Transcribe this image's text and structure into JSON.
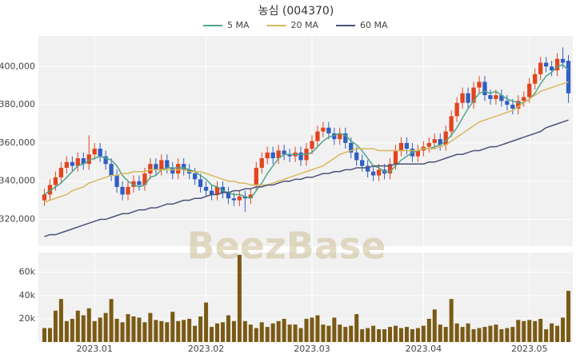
{
  "chart_data": [
    {
      "type": "candlestick",
      "title": "농심 (004370)",
      "watermark": "BeezBase",
      "categories": [
        null,
        null,
        null,
        null,
        null,
        null,
        null,
        null,
        null,
        "2023.01",
        null,
        null,
        null,
        null,
        null,
        null,
        null,
        null,
        null,
        null,
        null,
        null,
        null,
        null,
        null,
        null,
        null,
        null,
        null,
        "2023.02",
        null,
        null,
        null,
        null,
        null,
        null,
        null,
        null,
        null,
        null,
        null,
        null,
        null,
        null,
        null,
        null,
        null,
        null,
        "2023.03",
        null,
        null,
        null,
        null,
        null,
        null,
        null,
        null,
        null,
        null,
        null,
        null,
        null,
        null,
        null,
        null,
        null,
        null,
        null,
        "2023.04",
        null,
        null,
        null,
        null,
        null,
        null,
        null,
        null,
        null,
        null,
        null,
        null,
        null,
        null,
        null,
        null,
        null,
        null,
        "2023.05",
        null,
        null,
        null,
        null,
        null,
        null,
        null
      ],
      "open": [
        330000,
        333000,
        338000,
        342000,
        347000,
        350000,
        348000,
        352000,
        349000,
        354000,
        357000,
        353000,
        349000,
        343000,
        337000,
        333000,
        337000,
        340000,
        338000,
        344000,
        349000,
        346000,
        351000,
        347000,
        344000,
        349000,
        346000,
        344000,
        341000,
        337000,
        335000,
        333000,
        337000,
        334000,
        331000,
        330000,
        332000,
        331000,
        338000,
        347000,
        352000,
        355000,
        352000,
        356000,
        354000,
        353000,
        355000,
        351000,
        357000,
        361000,
        366000,
        368000,
        365000,
        362000,
        365000,
        360000,
        355000,
        351000,
        348000,
        345000,
        343000,
        346000,
        344000,
        349000,
        356000,
        360000,
        357000,
        353000,
        356000,
        358000,
        360000,
        362000,
        359000,
        366000,
        374000,
        381000,
        386000,
        381000,
        389000,
        392000,
        385000,
        383000,
        385000,
        382000,
        380000,
        378000,
        382000,
        384000,
        391000,
        396000,
        402000,
        400000,
        398000,
        404000,
        403000
      ],
      "high": [
        336000,
        341000,
        345000,
        350000,
        353000,
        353000,
        355000,
        355000,
        364000,
        360000,
        360000,
        356000,
        352000,
        346000,
        340000,
        340000,
        343000,
        343000,
        347000,
        352000,
        352000,
        354000,
        354000,
        350000,
        352000,
        352000,
        349000,
        347000,
        344000,
        340000,
        338000,
        340000,
        340000,
        337000,
        334000,
        335000,
        335000,
        336000,
        350000,
        355000,
        358000,
        358000,
        359000,
        359000,
        357000,
        358000,
        358000,
        360000,
        364000,
        369000,
        371000,
        371000,
        368000,
        368000,
        368000,
        363000,
        358000,
        354000,
        351000,
        348000,
        349000,
        349000,
        352000,
        359000,
        363000,
        363000,
        360000,
        359000,
        361000,
        363000,
        365000,
        365000,
        369000,
        377000,
        384000,
        389000,
        389000,
        392000,
        395000,
        395000,
        388000,
        388000,
        388000,
        385000,
        383000,
        385000,
        387000,
        394000,
        399000,
        405000,
        405000,
        403000,
        407000,
        410000,
        406000
      ],
      "low": [
        327000,
        330000,
        335000,
        339000,
        344000,
        345000,
        345000,
        346000,
        346000,
        351000,
        350000,
        346000,
        340000,
        334000,
        330000,
        330000,
        334000,
        335000,
        335000,
        341000,
        343000,
        343000,
        344000,
        341000,
        341000,
        343000,
        341000,
        338000,
        334000,
        332000,
        330000,
        330000,
        331000,
        328000,
        327000,
        327000,
        324000,
        328000,
        335000,
        344000,
        349000,
        349000,
        349000,
        351000,
        350000,
        350000,
        348000,
        348000,
        354000,
        358000,
        363000,
        362000,
        359000,
        359000,
        357000,
        352000,
        348000,
        345000,
        342000,
        340000,
        340000,
        341000,
        341000,
        346000,
        353000,
        354000,
        350000,
        350000,
        353000,
        355000,
        357000,
        356000,
        356000,
        363000,
        371000,
        378000,
        378000,
        378000,
        386000,
        382000,
        380000,
        380000,
        379000,
        377000,
        375000,
        375000,
        379000,
        381000,
        388000,
        393000,
        397000,
        395000,
        395000,
        399000,
        381000
      ],
      "close": [
        333000,
        338000,
        342000,
        347000,
        350000,
        348000,
        352000,
        349000,
        354000,
        357000,
        353000,
        349000,
        343000,
        337000,
        333000,
        337000,
        340000,
        338000,
        344000,
        349000,
        346000,
        351000,
        347000,
        344000,
        349000,
        346000,
        344000,
        341000,
        337000,
        335000,
        333000,
        337000,
        334000,
        331000,
        330000,
        332000,
        331000,
        333000,
        347000,
        352000,
        355000,
        352000,
        356000,
        354000,
        353000,
        355000,
        351000,
        357000,
        361000,
        366000,
        368000,
        365000,
        362000,
        365000,
        360000,
        355000,
        351000,
        348000,
        345000,
        343000,
        346000,
        344000,
        349000,
        356000,
        360000,
        357000,
        353000,
        356000,
        358000,
        360000,
        362000,
        359000,
        366000,
        374000,
        381000,
        386000,
        381000,
        389000,
        392000,
        385000,
        383000,
        385000,
        382000,
        380000,
        378000,
        382000,
        384000,
        391000,
        396000,
        402000,
        400000,
        398000,
        404000,
        402000,
        386000
      ],
      "up_color": "#e2451e",
      "down_color": "#2f5fc4",
      "series": [
        {
          "name": "5 MA",
          "color": "#4fa58a",
          "values": [
            333000,
            335000,
            337000,
            339000,
            342000,
            345000,
            348000,
            349000,
            351000,
            352000,
            353000,
            352000,
            351000,
            348000,
            343000,
            340000,
            338000,
            337000,
            338000,
            342000,
            343000,
            346000,
            347000,
            347000,
            347000,
            347000,
            346000,
            345000,
            343000,
            341000,
            338000,
            337000,
            335000,
            334000,
            333000,
            333000,
            332000,
            331000,
            335000,
            339000,
            344000,
            348000,
            352000,
            354000,
            354000,
            354000,
            354000,
            354000,
            355000,
            358000,
            361000,
            363000,
            364000,
            365000,
            364000,
            361000,
            359000,
            356000,
            352000,
            348000,
            347000,
            345000,
            345000,
            348000,
            351000,
            353000,
            355000,
            356000,
            357000,
            357000,
            358000,
            359000,
            361000,
            364000,
            368000,
            373000,
            378000,
            382000,
            386000,
            387000,
            386000,
            387000,
            385000,
            383000,
            382000,
            381000,
            381000,
            383000,
            386000,
            391000,
            395000,
            397000,
            400000,
            401000,
            398000
          ]
        },
        {
          "name": "20 MA",
          "color": "#d8b85e",
          "values": [
            329000,
            330000,
            331000,
            332000,
            333000,
            335000,
            336000,
            337000,
            339000,
            340000,
            341000,
            342000,
            343000,
            343000,
            344000,
            344000,
            345000,
            345000,
            345000,
            346000,
            346000,
            346000,
            346000,
            346000,
            346000,
            346000,
            345000,
            345000,
            345000,
            344000,
            343000,
            342000,
            341000,
            340000,
            340000,
            339000,
            339000,
            338000,
            338000,
            338000,
            338000,
            339000,
            340000,
            341000,
            342000,
            343000,
            344000,
            345000,
            346000,
            347000,
            348000,
            350000,
            352000,
            354000,
            355000,
            356000,
            357000,
            357000,
            357000,
            357000,
            356000,
            356000,
            356000,
            356000,
            356000,
            356000,
            356000,
            356000,
            357000,
            357000,
            357000,
            358000,
            359000,
            361000,
            363000,
            365000,
            367000,
            369000,
            371000,
            372000,
            373000,
            374000,
            375000,
            376000,
            377000,
            379000,
            381000,
            383000,
            385000,
            387000,
            388000,
            389000,
            390000,
            391000,
            392000
          ]
        },
        {
          "name": "60 MA",
          "color": "#4b5377",
          "values": [
            311000,
            312000,
            312000,
            313000,
            314000,
            315000,
            316000,
            317000,
            318000,
            319000,
            320000,
            320000,
            321000,
            322000,
            323000,
            323000,
            324000,
            325000,
            325000,
            326000,
            326000,
            327000,
            328000,
            328000,
            329000,
            330000,
            330000,
            331000,
            331000,
            332000,
            333000,
            333000,
            334000,
            334000,
            335000,
            335000,
            336000,
            336000,
            337000,
            337000,
            338000,
            338000,
            339000,
            340000,
            340000,
            341000,
            341000,
            342000,
            342000,
            343000,
            344000,
            344000,
            345000,
            345000,
            346000,
            346000,
            347000,
            347000,
            347000,
            348000,
            348000,
            348000,
            348000,
            349000,
            349000,
            349000,
            349000,
            349000,
            349000,
            350000,
            350000,
            351000,
            352000,
            353000,
            354000,
            354000,
            355000,
            356000,
            356000,
            357000,
            358000,
            358000,
            359000,
            360000,
            361000,
            362000,
            363000,
            364000,
            365000,
            366000,
            368000,
            369000,
            370000,
            371000,
            372000
          ]
        }
      ],
      "ylim": [
        306000,
        416000
      ],
      "yticks": [
        {
          "value": 320000,
          "label": "320,000"
        },
        {
          "value": 340000,
          "label": "340,000"
        },
        {
          "value": 360000,
          "label": "360,000"
        },
        {
          "value": 380000,
          "label": "380,000"
        },
        {
          "value": 400000,
          "label": "400,000"
        }
      ],
      "grid": true,
      "legend": "top"
    },
    {
      "type": "bar",
      "color": "#7a5a14",
      "values": [
        12000,
        12000,
        27000,
        37000,
        18000,
        20000,
        27000,
        23000,
        29000,
        18000,
        21000,
        25000,
        37000,
        20000,
        17000,
        24000,
        22000,
        21000,
        17000,
        25000,
        19000,
        18000,
        17000,
        26000,
        18000,
        19000,
        20000,
        14000,
        22000,
        34000,
        13000,
        16000,
        17000,
        23000,
        18000,
        75000,
        18000,
        15000,
        12000,
        17000,
        13000,
        16000,
        18000,
        20000,
        15000,
        15000,
        12000,
        20000,
        21000,
        23000,
        15000,
        14000,
        21000,
        15000,
        13000,
        14000,
        24000,
        11000,
        12000,
        14000,
        11000,
        11000,
        13000,
        14000,
        12000,
        13000,
        11000,
        12000,
        14000,
        20000,
        28000,
        15000,
        13000,
        37000,
        16000,
        13000,
        16000,
        11000,
        12000,
        13000,
        14000,
        15000,
        11000,
        12000,
        13000,
        19000,
        18000,
        19000,
        18000,
        20000,
        11000,
        16000,
        14000,
        21000,
        44000
      ],
      "ylim": [
        0,
        77000
      ],
      "yticks": [
        {
          "value": 20000,
          "label": "20k"
        },
        {
          "value": 40000,
          "label": "40k"
        },
        {
          "value": 60000,
          "label": "60k"
        }
      ],
      "grid": true
    }
  ]
}
